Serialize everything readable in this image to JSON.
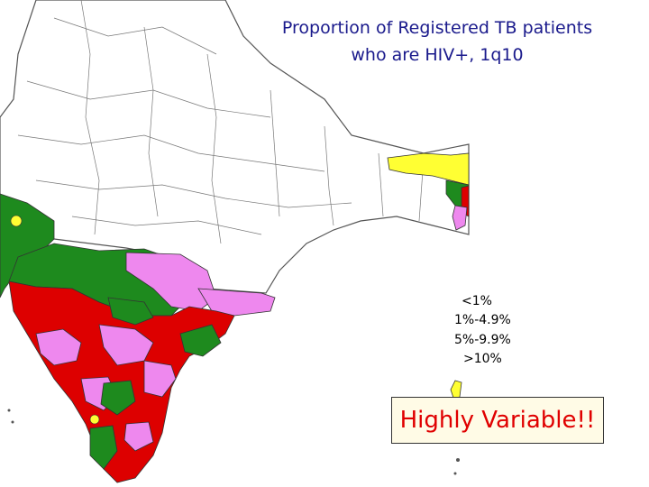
{
  "title": {
    "line1": "Proportion of Registered TB patients",
    "line2": "who are HIV+, 1q10"
  },
  "legend": {
    "items": [
      {
        "label": "<1%",
        "color": "#ffffff"
      },
      {
        "label": "1%-4.9%",
        "color": "#ffff33"
      },
      {
        "label": "5%-9.9%",
        "color": "#ee88ee"
      },
      {
        "label": ">10%",
        "color": "#dd0000"
      }
    ]
  },
  "callout": {
    "text": "Highly Variable!!"
  },
  "colors": {
    "green_category": "#1e8a1e",
    "yellow_category": "#ffff33",
    "pink_category": "#ee88ee",
    "red_category": "#dd0000",
    "outline": "#444444",
    "title_text": "#1a1a8c",
    "callout_text": "#e00000"
  }
}
